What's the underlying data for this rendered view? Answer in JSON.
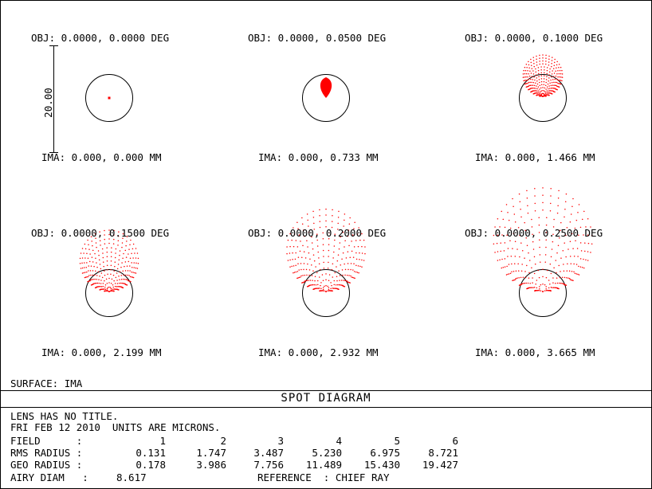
{
  "fields": [
    {
      "obj": "OBJ: 0.0000, 0.0000 DEG",
      "ima": "IMA: 0.000, 0.000 MM",
      "spot_shape": "dot"
    },
    {
      "obj": "OBJ: 0.0000, 0.0500 DEG",
      "ima": "IMA: 0.000, 0.733 MM",
      "spot_shape": "small-drop"
    },
    {
      "obj": "OBJ: 0.0000, 0.1000 DEG",
      "ima": "IMA: 0.000, 1.466 MM",
      "spot_shape": "fan"
    },
    {
      "obj": "OBJ: 0.0000, 0.1500 DEG",
      "ima": "IMA: 0.000, 2.199 MM",
      "spot_shape": "fan"
    },
    {
      "obj": "OBJ: 0.0000, 0.2000 DEG",
      "ima": "IMA: 0.000, 2.932 MM",
      "spot_shape": "fan"
    },
    {
      "obj": "OBJ: 0.0000, 0.2500 DEG",
      "ima": "IMA: 0.000, 3.665 MM",
      "spot_shape": "fan"
    }
  ],
  "scale_bar_label": "20.00",
  "surface_label": "SURFACE: IMA",
  "diagram_title": "SPOT DIAGRAM",
  "info": {
    "line1": "LENS HAS NO TITLE.",
    "line2": "FRI FEB 12 2010  UNITS ARE MICRONS.",
    "field_label": "FIELD      :",
    "field_values": [
      "1",
      "2",
      "3",
      "4",
      "5",
      "6"
    ],
    "rms_label": "RMS RADIUS :",
    "rms_values": [
      "0.131",
      "1.747",
      "3.487",
      "5.230",
      "6.975",
      "8.721"
    ],
    "geo_label": "GEO RADIUS :",
    "geo_values": [
      "0.178",
      "3.986",
      "7.756",
      "11.489",
      "15.430",
      "19.427"
    ],
    "airy_label": "AIRY DIAM   :",
    "airy_value": "8.617",
    "reference_label": "REFERENCE  : CHIEF RAY"
  },
  "colors": {
    "spot": "#ff0000",
    "line": "#000000",
    "background": "#ffffff"
  }
}
